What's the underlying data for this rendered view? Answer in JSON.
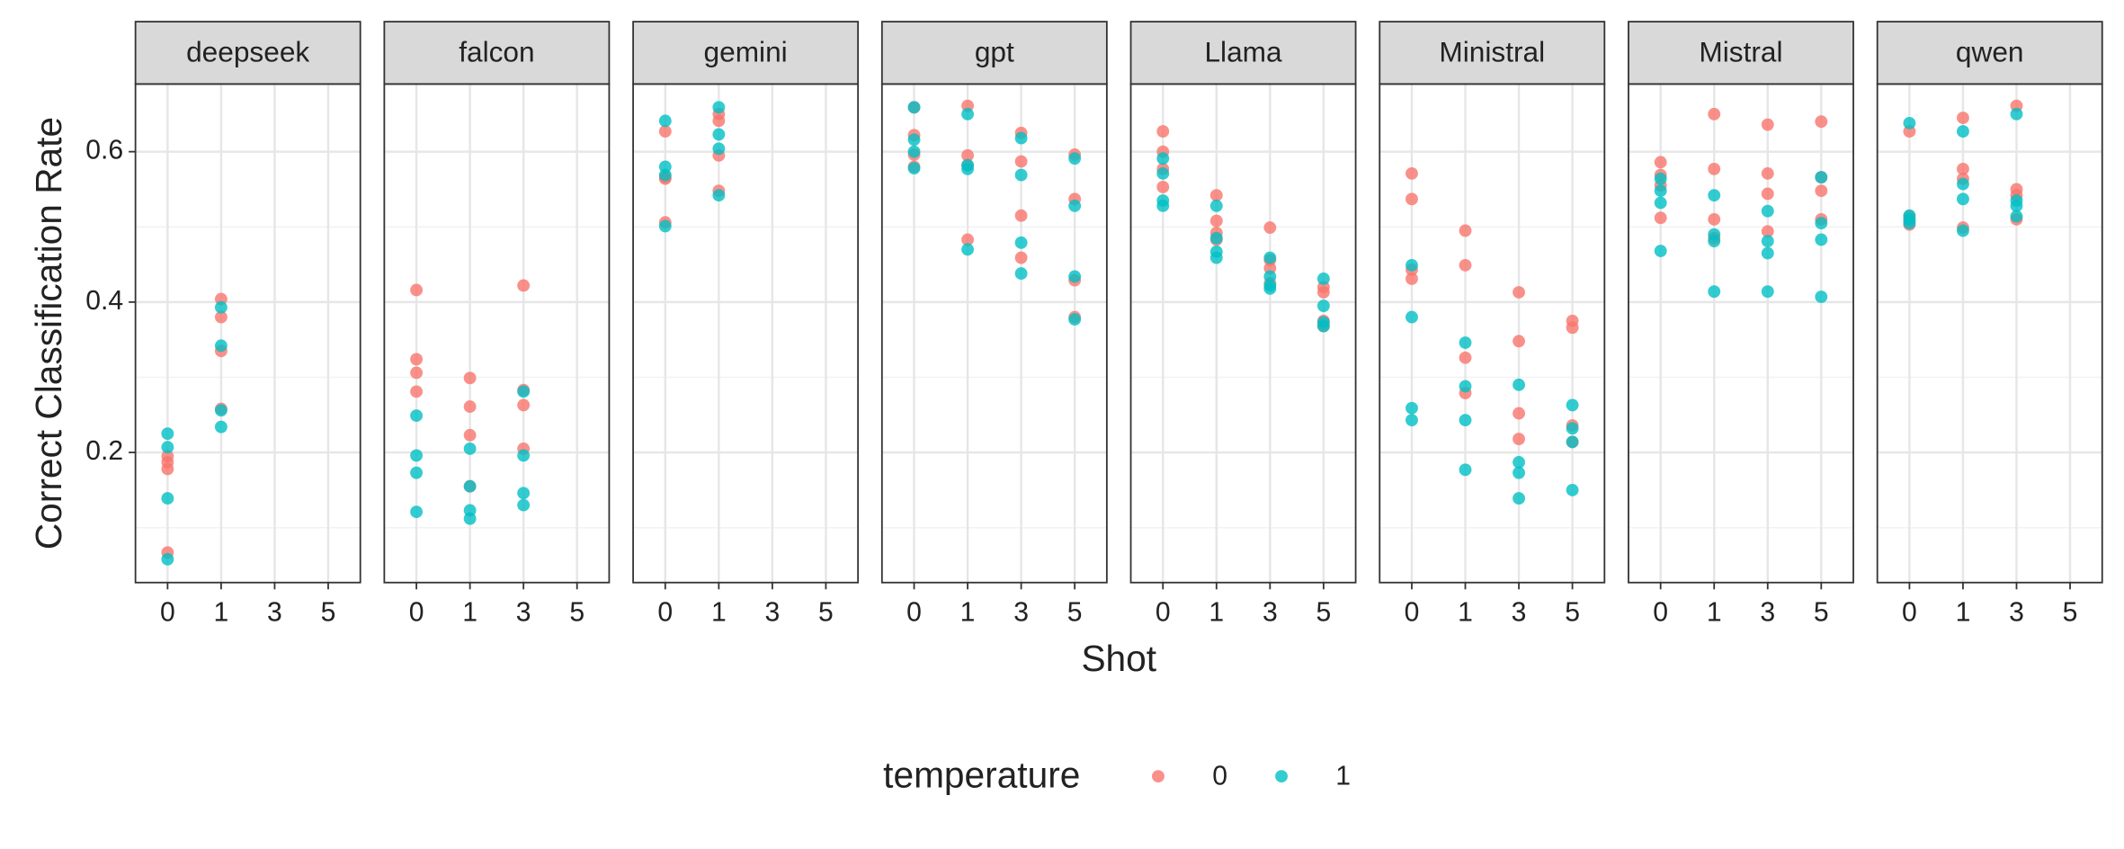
{
  "x_axis": {
    "title": "Shot"
  },
  "y_axis": {
    "title": "Correct Classification Rate",
    "lim": [
      0.027,
      0.69
    ],
    "ticks": [
      0.2,
      0.4,
      0.6
    ],
    "minor": [
      0.1,
      0.3,
      0.5
    ],
    "grid": true
  },
  "legend": {
    "title": "temperature",
    "position": "bottom"
  },
  "chart_data": [
    {
      "type": "scatter",
      "title": "deepseek",
      "categories": [
        "0",
        "1",
        "3",
        "5"
      ],
      "series": [
        {
          "name": "0",
          "color": "#F8766D",
          "x": [
            "0",
            "0",
            "0",
            "0",
            "1",
            "1",
            "1",
            "1"
          ],
          "values": [
            0.195,
            0.187,
            0.178,
            0.067,
            0.404,
            0.38,
            0.335,
            0.258
          ]
        },
        {
          "name": "1",
          "color": "#00BFC4",
          "x": [
            "0",
            "0",
            "0",
            "0",
            "1",
            "1",
            "1",
            "1"
          ],
          "values": [
            0.225,
            0.207,
            0.139,
            0.058,
            0.393,
            0.342,
            0.256,
            0.234
          ]
        }
      ]
    },
    {
      "type": "scatter",
      "title": "falcon",
      "categories": [
        "0",
        "1",
        "3",
        "5"
      ],
      "series": [
        {
          "name": "0",
          "color": "#F8766D",
          "x": [
            "0",
            "0",
            "0",
            "0",
            "1",
            "1",
            "1",
            "1",
            "3",
            "3",
            "3",
            "3"
          ],
          "values": [
            0.416,
            0.324,
            0.306,
            0.281,
            0.299,
            0.261,
            0.223,
            0.155,
            0.422,
            0.283,
            0.263,
            0.205
          ]
        },
        {
          "name": "1",
          "color": "#00BFC4",
          "x": [
            "0",
            "0",
            "0",
            "0",
            "1",
            "1",
            "1",
            "1",
            "3",
            "3",
            "3",
            "3"
          ],
          "values": [
            0.249,
            0.196,
            0.173,
            0.121,
            0.205,
            0.155,
            0.123,
            0.112,
            0.281,
            0.196,
            0.146,
            0.13
          ]
        }
      ]
    },
    {
      "type": "scatter",
      "title": "gemini",
      "categories": [
        "0",
        "1",
        "3",
        "5"
      ],
      "series": [
        {
          "name": "0",
          "color": "#F8766D",
          "x": [
            "0",
            "0",
            "0",
            "0",
            "1",
            "1",
            "1",
            "1"
          ],
          "values": [
            0.627,
            0.566,
            0.564,
            0.506,
            0.65,
            0.641,
            0.595,
            0.548
          ]
        },
        {
          "name": "1",
          "color": "#00BFC4",
          "x": [
            "0",
            "0",
            "0",
            "0",
            "1",
            "1",
            "1",
            "1"
          ],
          "values": [
            0.641,
            0.58,
            0.569,
            0.501,
            0.659,
            0.623,
            0.604,
            0.542
          ]
        }
      ]
    },
    {
      "type": "scatter",
      "title": "gpt",
      "categories": [
        "0",
        "1",
        "3",
        "5"
      ],
      "series": [
        {
          "name": "0",
          "color": "#F8766D",
          "x": [
            "0",
            "0",
            "0",
            "0",
            "1",
            "1",
            "1",
            "1",
            "3",
            "3",
            "3",
            "3",
            "5",
            "5",
            "5",
            "5"
          ],
          "values": [
            0.659,
            0.622,
            0.596,
            0.58,
            0.661,
            0.595,
            0.582,
            0.483,
            0.625,
            0.587,
            0.515,
            0.459,
            0.596,
            0.537,
            0.429,
            0.38
          ]
        },
        {
          "name": "1",
          "color": "#00BFC4",
          "x": [
            "0",
            "0",
            "0",
            "0",
            "1",
            "1",
            "1",
            "1",
            "3",
            "3",
            "3",
            "3",
            "5",
            "5",
            "5",
            "5"
          ],
          "values": [
            0.659,
            0.616,
            0.6,
            0.578,
            0.65,
            0.582,
            0.577,
            0.47,
            0.618,
            0.569,
            0.479,
            0.438,
            0.591,
            0.528,
            0.434,
            0.377
          ]
        }
      ]
    },
    {
      "type": "scatter",
      "title": "Llama",
      "categories": [
        "0",
        "1",
        "3",
        "5"
      ],
      "series": [
        {
          "name": "0",
          "color": "#F8766D",
          "x": [
            "0",
            "0",
            "0",
            "0",
            "1",
            "1",
            "1",
            "1",
            "3",
            "3",
            "3",
            "3",
            "5",
            "5",
            "5",
            "5"
          ],
          "values": [
            0.627,
            0.6,
            0.577,
            0.553,
            0.542,
            0.508,
            0.492,
            0.483,
            0.499,
            0.456,
            0.445,
            0.425,
            0.42,
            0.413,
            0.375,
            0.368
          ]
        },
        {
          "name": "1",
          "color": "#00BFC4",
          "x": [
            "0",
            "0",
            "0",
            "0",
            "1",
            "1",
            "1",
            "1",
            "3",
            "3",
            "3",
            "3",
            "5",
            "5",
            "5",
            "5"
          ],
          "values": [
            0.591,
            0.571,
            0.535,
            0.528,
            0.528,
            0.485,
            0.467,
            0.459,
            0.459,
            0.434,
            0.418,
            0.422,
            0.431,
            0.395,
            0.373,
            0.368
          ]
        }
      ]
    },
    {
      "type": "scatter",
      "title": "Ministral",
      "categories": [
        "0",
        "1",
        "3",
        "5"
      ],
      "series": [
        {
          "name": "0",
          "color": "#F8766D",
          "x": [
            "0",
            "0",
            "0",
            "0",
            "1",
            "1",
            "1",
            "1",
            "3",
            "3",
            "3",
            "3",
            "5",
            "5",
            "5",
            "5"
          ],
          "values": [
            0.571,
            0.537,
            0.443,
            0.431,
            0.495,
            0.449,
            0.326,
            0.279,
            0.413,
            0.348,
            0.252,
            0.218,
            0.375,
            0.366,
            0.236,
            0.214
          ]
        },
        {
          "name": "1",
          "color": "#00BFC4",
          "x": [
            "0",
            "0",
            "0",
            "0",
            "1",
            "1",
            "1",
            "1",
            "3",
            "3",
            "3",
            "3",
            "5",
            "5",
            "5",
            "5"
          ],
          "values": [
            0.449,
            0.38,
            0.259,
            0.243,
            0.346,
            0.288,
            0.243,
            0.177,
            0.29,
            0.187,
            0.173,
            0.139,
            0.263,
            0.232,
            0.214,
            0.15
          ]
        }
      ]
    },
    {
      "type": "scatter",
      "title": "Mistral",
      "categories": [
        "0",
        "1",
        "3",
        "5"
      ],
      "series": [
        {
          "name": "0",
          "color": "#F8766D",
          "x": [
            "0",
            "0",
            "0",
            "0",
            "1",
            "1",
            "1",
            "1",
            "3",
            "3",
            "3",
            "3",
            "5",
            "5",
            "5",
            "5"
          ],
          "values": [
            0.586,
            0.569,
            0.555,
            0.512,
            0.65,
            0.577,
            0.51,
            0.485,
            0.636,
            0.571,
            0.544,
            0.494,
            0.64,
            0.566,
            0.548,
            0.51
          ]
        },
        {
          "name": "1",
          "color": "#00BFC4",
          "x": [
            "0",
            "0",
            "0",
            "0",
            "1",
            "1",
            "1",
            "1",
            "3",
            "3",
            "3",
            "3",
            "5",
            "5",
            "5",
            "5"
          ],
          "values": [
            0.564,
            0.548,
            0.532,
            0.468,
            0.542,
            0.49,
            0.481,
            0.414,
            0.521,
            0.481,
            0.465,
            0.414,
            0.566,
            0.505,
            0.483,
            0.407
          ]
        }
      ]
    },
    {
      "type": "scatter",
      "title": "qwen",
      "categories": [
        "0",
        "1",
        "3",
        "5"
      ],
      "series": [
        {
          "name": "0",
          "color": "#F8766D",
          "x": [
            "0",
            "0",
            "0",
            "0",
            "1",
            "1",
            "1",
            "1",
            "3",
            "3",
            "3",
            "3"
          ],
          "values": [
            0.627,
            0.514,
            0.508,
            0.503,
            0.645,
            0.577,
            0.564,
            0.499,
            0.661,
            0.55,
            0.542,
            0.51
          ]
        },
        {
          "name": "1",
          "color": "#00BFC4",
          "x": [
            "0",
            "0",
            "0",
            "0",
            "1",
            "1",
            "1",
            "1",
            "3",
            "3",
            "3",
            "3"
          ],
          "values": [
            0.638,
            0.515,
            0.51,
            0.505,
            0.627,
            0.557,
            0.537,
            0.495,
            0.65,
            0.535,
            0.528,
            0.514
          ]
        }
      ]
    }
  ]
}
